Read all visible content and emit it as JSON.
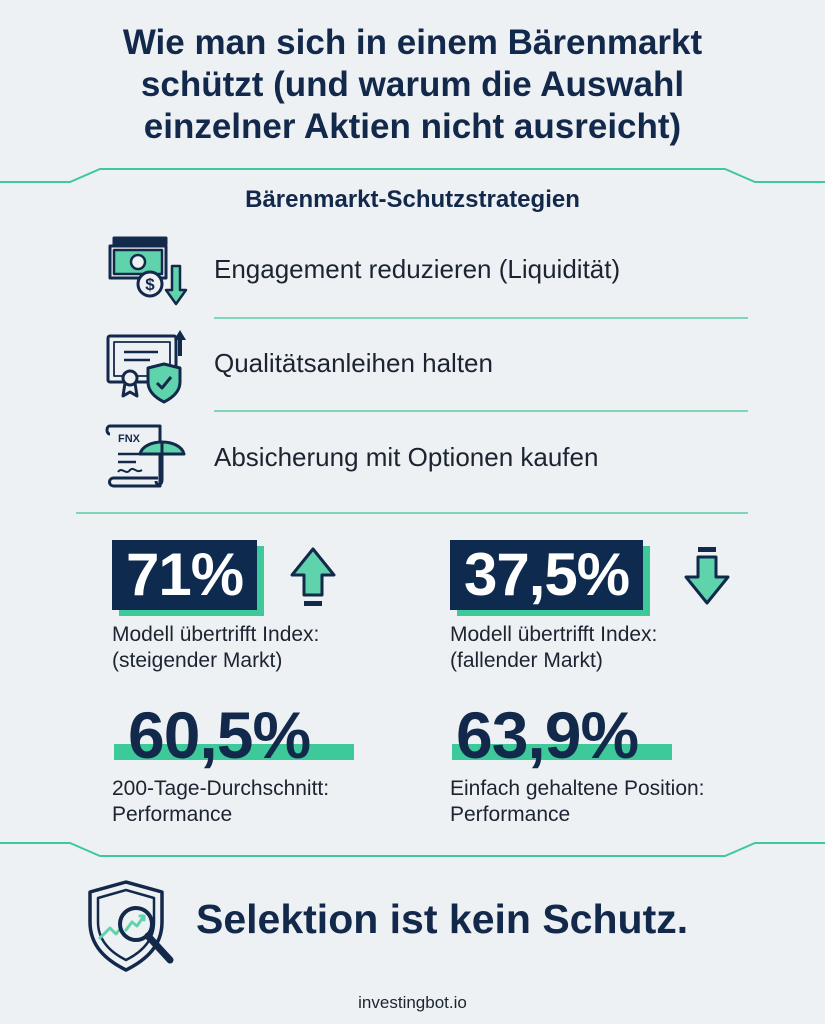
{
  "header": {
    "title_line1": "Wie man sich in einem Bärenmarkt",
    "title_line2": "schützt (und warum die Auswahl",
    "title_line3": "einzelner Aktien nicht ausreicht)"
  },
  "section": {
    "heading": "Bärenmarkt-Schutzstrategien"
  },
  "strategies": [
    {
      "label": "Engagement reduzieren (Liquidität)",
      "icon": "cash-dollar-down-icon"
    },
    {
      "label": "Qualitätsanleihen halten",
      "icon": "bond-certificate-shield-icon"
    },
    {
      "label": "Absicherung mit Optionen kaufen",
      "icon": "options-contract-umbrella-icon",
      "icon_text": "FNX"
    }
  ],
  "stats": {
    "rising": {
      "value": "71%",
      "caption_line1": "Modell übertrifft Index:",
      "caption_line2": "(steigender Markt)",
      "arrow": "up-arrow-icon"
    },
    "falling": {
      "value": "37,5%",
      "caption_line1": "Modell übertrifft Index:",
      "caption_line2": "(fallender Markt)",
      "arrow": "down-arrow-icon"
    },
    "ma200": {
      "value": "60,5%",
      "caption_line1": "200-Tage-Durchschnitt:",
      "caption_line2": "Performance"
    },
    "buyhold": {
      "value": "63,9%",
      "caption_line1": "Einfach gehaltene Position:",
      "caption_line2": "Performance"
    }
  },
  "footer": {
    "closing": "Selektion ist kein Schutz.",
    "icon": "shield-magnifier-chart-icon",
    "source": "investingbot.io"
  },
  "colors": {
    "navy": "#13294b",
    "badge": "#0f2a4f",
    "accent": "#3ec99a",
    "background": "#eef1f4"
  }
}
